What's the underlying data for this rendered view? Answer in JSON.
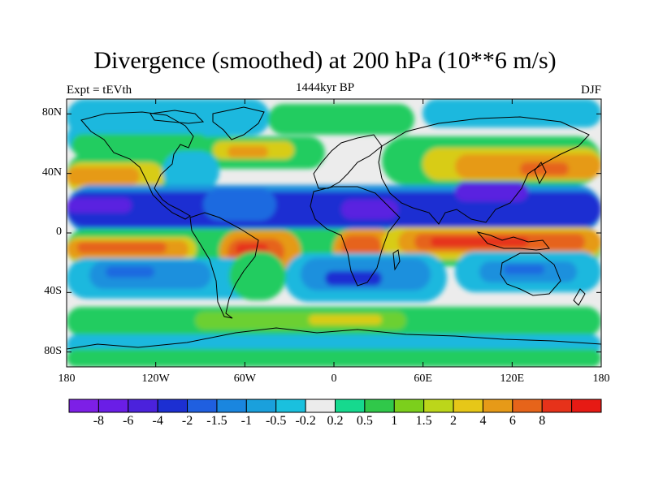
{
  "title": "Divergence (smoothed) at 200 hPa (10**6 m/s)",
  "experiment": "Expt = tEVth",
  "period": "1444kyr BP",
  "season": "DJF",
  "lat_labels": [
    {
      "text": "80N",
      "lat": 80
    },
    {
      "text": "40N",
      "lat": 40
    },
    {
      "text": "0",
      "lat": 0
    },
    {
      "text": "40S",
      "lat": -40
    },
    {
      "text": "80S",
      "lat": -80
    }
  ],
  "lon_labels": [
    {
      "text": "180",
      "lon": -180
    },
    {
      "text": "120W",
      "lon": -120
    },
    {
      "text": "60W",
      "lon": -60
    },
    {
      "text": "0",
      "lon": 0
    },
    {
      "text": "60E",
      "lon": 60
    },
    {
      "text": "120E",
      "lon": 120
    },
    {
      "text": "180",
      "lon": 180
    }
  ],
  "colorbar": {
    "colors": [
      "#7d1fe6",
      "#6a1ee6",
      "#4b22dc",
      "#1c2fd2",
      "#1f5fe0",
      "#1a86df",
      "#1aa0dc",
      "#1ac0de",
      "#ececec",
      "#16d98e",
      "#30c84a",
      "#7ccf1c",
      "#bcd61a",
      "#e6c718",
      "#e69a18",
      "#e6641a",
      "#e6321a",
      "#e61a14"
    ],
    "labels": [
      "-8",
      "-6",
      "-4",
      "-2",
      "-1.5",
      "-1",
      "-0.5",
      "-0.2",
      "0.2",
      "0.5",
      "1",
      "1.5",
      "2",
      "4",
      "6",
      "8"
    ]
  },
  "field_colors": {
    "purple": "#5a20e0",
    "darkblue": "#1c2fd2",
    "blue": "#1f6ae0",
    "midblue": "#1a90dd",
    "lightblue": "#1ab8de",
    "neutral": "#ececec",
    "green": "#22cc60",
    "lightgreen": "#6cd030",
    "yellow": "#d8cc18",
    "orange": "#e69a18",
    "darkorange": "#e6641a",
    "red": "#e6321a"
  }
}
